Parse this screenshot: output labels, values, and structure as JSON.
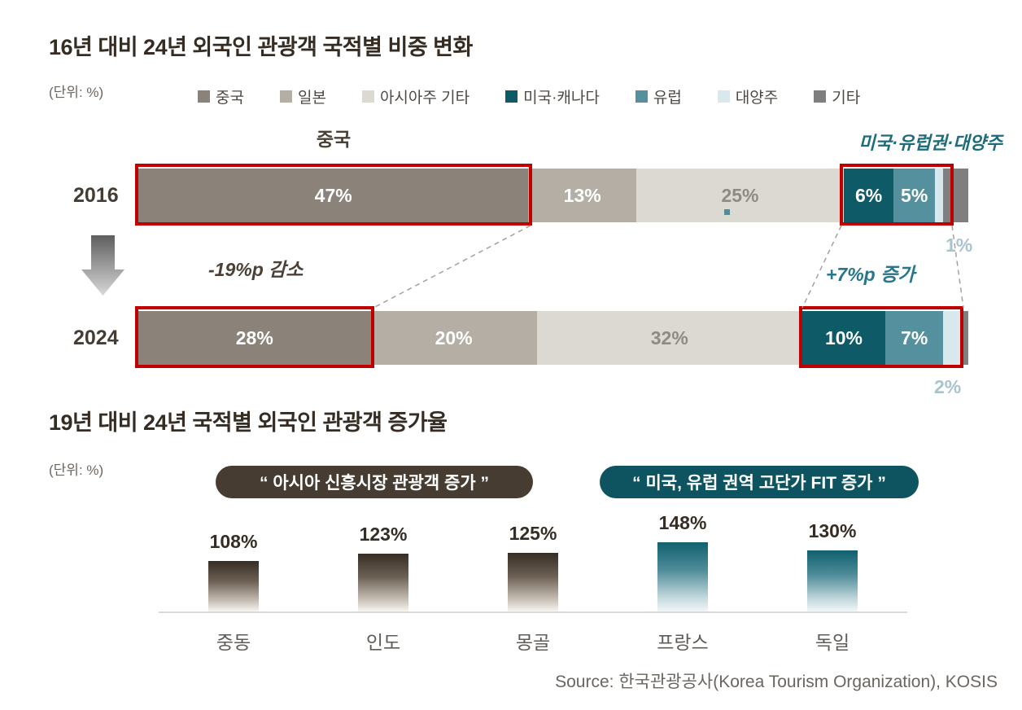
{
  "chart_data": [
    {
      "type": "bar",
      "subtype": "horizontal-stacked-100pct",
      "title": "16년 대비 24년 외국인 관광객 국적별 비중 변화",
      "unit": "(단위: %)",
      "highlight_color": "#c00000",
      "legend": [
        {
          "label": "중국",
          "color": "#8b8279"
        },
        {
          "label": "일본",
          "color": "#b5aea5"
        },
        {
          "label": "아시아주 기타",
          "color": "#dcd8d2"
        },
        {
          "label": "미국·캐나다",
          "color": "#0e5a66"
        },
        {
          "label": "유럽",
          "color": "#54909d"
        },
        {
          "label": "대양주",
          "color": "#d9e8ec"
        },
        {
          "label": "기타",
          "color": "#7f7f7f"
        }
      ],
      "rows": [
        {
          "year": "2016",
          "values": [
            47,
            13,
            25,
            6,
            5,
            1,
            3
          ],
          "labels": [
            "47%",
            "13%",
            "25%",
            "6%",
            "5%",
            "",
            ""
          ]
        },
        {
          "year": "2024",
          "values": [
            28,
            20,
            32,
            10,
            7,
            2,
            1
          ],
          "labels": [
            "28%",
            "20%",
            "32%",
            "10%",
            "7%",
            "",
            ""
          ]
        }
      ],
      "annotations": {
        "china": "중국",
        "west": "미국·유럽권·대양주",
        "decrease": "-19%p 감소",
        "increase": "+7%p 증가",
        "oceania_2016": "1%",
        "oceania_2024": "2%"
      }
    },
    {
      "type": "bar",
      "subtype": "vertical-gradient-columns",
      "title": "19년 대비 24년 국적별 외국인 관광객 증가율",
      "unit": "(단위: %)",
      "badges": [
        {
          "label": "“ 아시아 신흥시장 관광객 증가 ”",
          "color": "#463c31"
        },
        {
          "label": "“ 미국, 유럽 권역 고단가 FIT 증가 ”",
          "color": "#0e5460"
        }
      ],
      "categories": [
        "중동",
        "인도",
        "몽골",
        "프랑스",
        "독일"
      ],
      "values": [
        108,
        123,
        125,
        148,
        130
      ],
      "value_labels": [
        "108%",
        "123%",
        "125%",
        "148%",
        "130%"
      ],
      "series_group": [
        "asia",
        "asia",
        "asia",
        "west",
        "west"
      ],
      "ylim": [
        0,
        160
      ]
    }
  ],
  "source": "Source: 한국관광공사(Korea Tourism Organization), KOSIS"
}
